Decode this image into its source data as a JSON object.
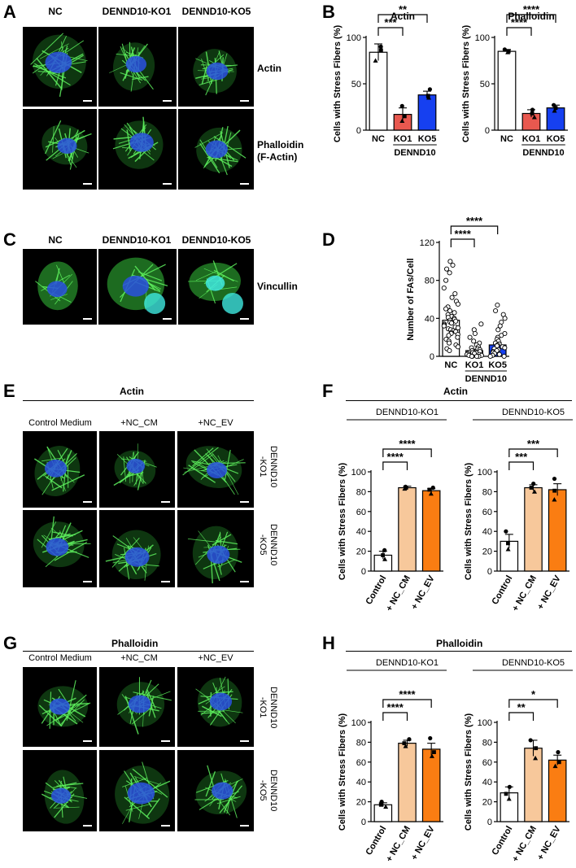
{
  "panels": {
    "a": "A",
    "b": "B",
    "c": "C",
    "d": "D",
    "e": "E",
    "f": "F",
    "g": "G",
    "h": "H"
  },
  "micrographs": {
    "a": {
      "cols": [
        "NC",
        "DENND10-KO1",
        "DENND10-KO5"
      ],
      "rows": [
        "Actin",
        "Phalloidin\n(F-Actin)"
      ]
    },
    "c": {
      "cols": [
        "NC",
        "DENND10-KO1",
        "DENND10-KO5"
      ],
      "row": "Vincullin"
    },
    "e": {
      "title": "Actin",
      "cols": [
        "Control Medium",
        "+NC_CM",
        "+NC_EV"
      ],
      "rows": [
        "DENND10\n-KO1",
        "DENND10\n-KO5"
      ]
    },
    "g": {
      "title": "Phalloidin",
      "cols": [
        "Control Medium",
        "+NC_CM",
        "+NC_EV"
      ],
      "rows": [
        "DENND10\n-KO1",
        "DENND10\n-KO5"
      ]
    }
  },
  "group_titles": {
    "f": "Actin",
    "h": "Phalloidin"
  },
  "colors": {
    "white": "#ffffff",
    "red": "#e8584f",
    "blue": "#1640f0",
    "light_orange": "#f7c89b",
    "orange": "#fa7d12",
    "cell_green": "#34c23a",
    "nucleus_blue": "#2a50e0",
    "nucleus_cyan": "#3fe8e0"
  },
  "chart_data": [
    {
      "type": "bar",
      "title": "Actin",
      "ylabel": "Cells with Stress Fibers (%)",
      "categories": [
        "NC",
        "KO1",
        "KO5"
      ],
      "group_label": "DENND10",
      "values": [
        84,
        17,
        38
      ],
      "errors": [
        9,
        7,
        4
      ],
      "points": [
        [
          90,
          86,
          75
        ],
        [
          26,
          15,
          10
        ],
        [
          44,
          37,
          35
        ]
      ],
      "bar_colors": [
        "white",
        "red",
        "blue"
      ],
      "ylim": [
        0,
        100
      ],
      "yticks": [
        "0",
        "50",
        "100"
      ],
      "comparisons": [
        {
          "from": 0,
          "to": 1,
          "label": "***"
        },
        {
          "from": 0,
          "to": 2,
          "label": "**"
        }
      ]
    },
    {
      "type": "bar",
      "title": "Phalloidin",
      "ylabel": "Cells with Stress Fibers (%)",
      "categories": [
        "NC",
        "KO1",
        "KO5"
      ],
      "group_label": "DENND10",
      "values": [
        85,
        18,
        24
      ],
      "errors": [
        2,
        4,
        3
      ],
      "points": [
        [
          87,
          85,
          84
        ],
        [
          22,
          18,
          14
        ],
        [
          27,
          24,
          21
        ]
      ],
      "bar_colors": [
        "white",
        "red",
        "blue"
      ],
      "ylim": [
        0,
        100
      ],
      "yticks": [
        "0",
        "50",
        "100"
      ],
      "comparisons": [
        {
          "from": 0,
          "to": 1,
          "label": "****"
        },
        {
          "from": 0,
          "to": 2,
          "label": "****"
        }
      ]
    },
    {
      "type": "bar",
      "title": "",
      "ylabel": "Number of FAs/Cell",
      "categories": [
        "NC",
        "KO1",
        "KO5"
      ],
      "group_label": "DENND10",
      "values": [
        38,
        6,
        12
      ],
      "errors": [
        4,
        1.5,
        2.5
      ],
      "points": [
        [
          100,
          96,
          92,
          88,
          80,
          72,
          66,
          62,
          58,
          55,
          52,
          50,
          48,
          46,
          44,
          42,
          41,
          40,
          39,
          38,
          37,
          36,
          35,
          34,
          33,
          32,
          31,
          30,
          29,
          28,
          27,
          26,
          25,
          24,
          23,
          22,
          20,
          18,
          16,
          14,
          12,
          10,
          8,
          6
        ],
        [
          34,
          28,
          24,
          20,
          16,
          14,
          12,
          10,
          9,
          8,
          7,
          6,
          5,
          4,
          4,
          3,
          3,
          2,
          2,
          1,
          1,
          0,
          0,
          0,
          0
        ],
        [
          54,
          48,
          44,
          40,
          36,
          32,
          28,
          24,
          22,
          20,
          18,
          16,
          14,
          13,
          12,
          11,
          10,
          9,
          8,
          7,
          6,
          5,
          4,
          3,
          2,
          1,
          0,
          0
        ]
      ],
      "bar_colors": [
        "white",
        "white",
        "blue"
      ],
      "ylim": [
        0,
        120
      ],
      "yticks": [
        "0",
        "40",
        "80",
        "120"
      ],
      "comparisons": [
        {
          "from": 0,
          "to": 1,
          "label": "****"
        },
        {
          "from": 0,
          "to": 2,
          "label": "****"
        }
      ]
    },
    {
      "type": "bar",
      "title": "DENND10-KO1",
      "ylabel": "Cells with Stress Fibers (%)",
      "categories": [
        "Control",
        "+ NC_CM",
        "+ NC_EV"
      ],
      "values": [
        16,
        84,
        81
      ],
      "errors": [
        4,
        1.5,
        2
      ],
      "points": [
        [
          21,
          16,
          12
        ],
        [
          85,
          84,
          83
        ],
        [
          84,
          82,
          78
        ]
      ],
      "bar_colors": [
        "white",
        "light_orange",
        "orange"
      ],
      "ylim": [
        0,
        100
      ],
      "yticks": [
        "0",
        "20",
        "40",
        "60",
        "80",
        "100"
      ],
      "comparisons": [
        {
          "from": 0,
          "to": 1,
          "label": "****"
        },
        {
          "from": 0,
          "to": 2,
          "label": "****"
        }
      ]
    },
    {
      "type": "bar",
      "title": "DENND10-KO5",
      "ylabel": "Cells with Stress Fibers (%)",
      "categories": [
        "Control",
        "+ NC_CM",
        "+ NC_EV"
      ],
      "values": [
        30,
        84,
        82
      ],
      "errors": [
        7,
        3,
        6
      ],
      "points": [
        [
          40,
          28,
          22
        ],
        [
          88,
          84,
          80
        ],
        [
          93,
          81,
          72
        ]
      ],
      "bar_colors": [
        "white",
        "light_orange",
        "orange"
      ],
      "ylim": [
        0,
        100
      ],
      "yticks": [
        "0",
        "20",
        "40",
        "60",
        "80",
        "100"
      ],
      "comparisons": [
        {
          "from": 0,
          "to": 1,
          "label": "***"
        },
        {
          "from": 0,
          "to": 2,
          "label": "***"
        }
      ]
    },
    {
      "type": "bar",
      "title": "DENND10-KO1",
      "ylabel": "Cells with Stress Fibers (%)",
      "categories": [
        "Control",
        "+ NC_CM",
        "+ NC_EV"
      ],
      "values": [
        17,
        79,
        73
      ],
      "errors": [
        2,
        3,
        6
      ],
      "points": [
        [
          20,
          17,
          15
        ],
        [
          83,
          79,
          76
        ],
        [
          84,
          70,
          66
        ]
      ],
      "bar_colors": [
        "white",
        "light_orange",
        "orange"
      ],
      "ylim": [
        0,
        100
      ],
      "yticks": [
        "0",
        "20",
        "40",
        "60",
        "80",
        "100"
      ],
      "comparisons": [
        {
          "from": 0,
          "to": 1,
          "label": "****"
        },
        {
          "from": 0,
          "to": 2,
          "label": "****"
        }
      ]
    },
    {
      "type": "bar",
      "title": "DENND10-KO5",
      "ylabel": "Cells with Stress Fibers (%)",
      "categories": [
        "Control",
        "+ NC_CM",
        "+ NC_EV"
      ],
      "values": [
        29,
        74,
        62
      ],
      "errors": [
        6,
        8,
        5
      ],
      "points": [
        [
          35,
          28,
          23
        ],
        [
          82,
          74,
          64
        ],
        [
          70,
          60,
          56
        ]
      ],
      "bar_colors": [
        "white",
        "light_orange",
        "orange"
      ],
      "ylim": [
        0,
        100
      ],
      "yticks": [
        "0",
        "20",
        "40",
        "60",
        "80",
        "100"
      ],
      "comparisons": [
        {
          "from": 0,
          "to": 1,
          "label": "**"
        },
        {
          "from": 0,
          "to": 2,
          "label": "*"
        }
      ]
    }
  ]
}
